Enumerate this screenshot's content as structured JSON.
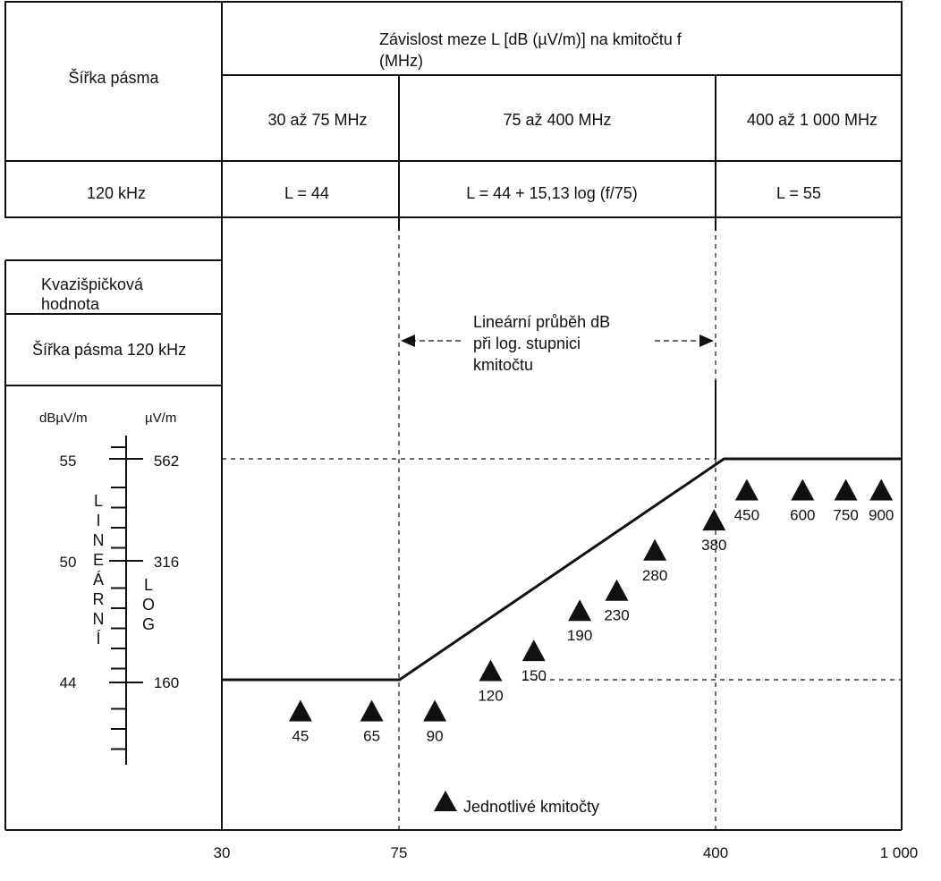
{
  "table": {
    "col_header": "Šířka pásma",
    "title_line1": "Závislost meze L [dB (µV/m)] na kmitočtu f",
    "title_line2": "(MHz)",
    "bands": [
      "30 až 75 MHz",
      "75 až 400 MHz",
      "400 až 1 000 MHz"
    ],
    "row_label": "120 kHz",
    "formulas": [
      "L = 44",
      "L = 44 + 15,13 log (f/75)",
      "L = 55"
    ]
  },
  "legend_box": {
    "quasi_peak_line1": "Kvazišpičková",
    "quasi_peak_line2": "hodnota",
    "bandwidth": "Šířka pásma 120 kHz"
  },
  "scale": {
    "left_unit": "dBµV/m",
    "right_unit": "µV/m",
    "left_values": [
      "55",
      "50",
      "44"
    ],
    "right_values": [
      "562",
      "316",
      "160"
    ],
    "linear_letters": [
      "L",
      "I",
      "N",
      "E",
      "Á",
      "R",
      "N",
      "Í"
    ],
    "log_letters": [
      "L",
      "O",
      "G"
    ]
  },
  "annotation": {
    "line1": "Lineární průběh dB",
    "line2": "při log. stupnici",
    "line3": "kmitočtu"
  },
  "marker_legend": "Jednotlivé kmitočty",
  "chart_data": {
    "type": "line",
    "x_scale": "log",
    "x_ticks": [
      "30",
      "75",
      "400",
      "1 000"
    ],
    "xlim": [
      30,
      1000
    ],
    "ylim": [
      41,
      56.5
    ],
    "limit_line": {
      "x": [
        30,
        75,
        400,
        1000
      ],
      "y": [
        44,
        44,
        55,
        55
      ]
    },
    "frequencies": [
      {
        "label": "45",
        "f": 45,
        "level": 43
      },
      {
        "label": "65",
        "f": 65,
        "level": 43
      },
      {
        "label": "90",
        "f": 90,
        "level": 43
      },
      {
        "label": "120",
        "f": 120,
        "level": 45
      },
      {
        "label": "150",
        "f": 150,
        "level": 46
      },
      {
        "label": "190",
        "f": 190,
        "level": 48
      },
      {
        "label": "230",
        "f": 230,
        "level": 49
      },
      {
        "label": "280",
        "f": 280,
        "level": 51
      },
      {
        "label": "380",
        "f": 380,
        "level": 52.5
      },
      {
        "label": "450",
        "f": 450,
        "level": 54
      },
      {
        "label": "600",
        "f": 600,
        "level": 54
      },
      {
        "label": "750",
        "f": 750,
        "level": 54
      },
      {
        "label": "900",
        "f": 900,
        "level": 54
      }
    ]
  }
}
